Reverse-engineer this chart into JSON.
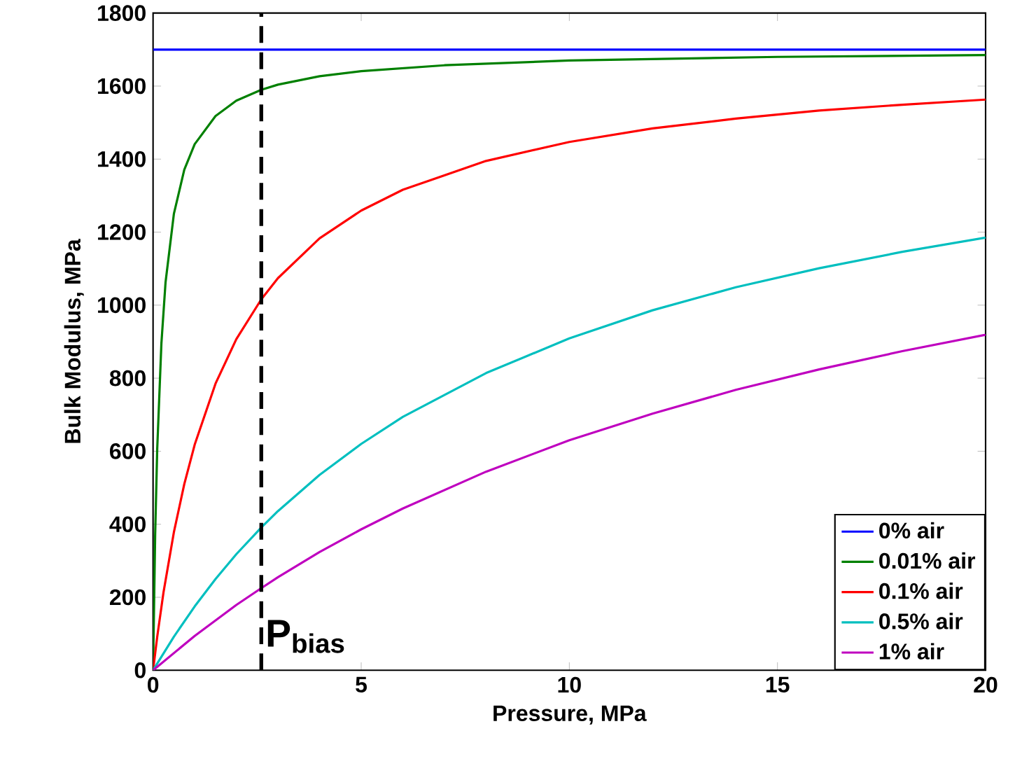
{
  "chart_data": {
    "type": "line",
    "xlabel": "Pressure, MPa",
    "ylabel": "Bulk Modulus, MPa",
    "xlim": [
      0,
      20
    ],
    "ylim": [
      0,
      1800
    ],
    "xticks": [
      0,
      5,
      10,
      15,
      20
    ],
    "yticks": [
      0,
      200,
      400,
      600,
      800,
      1000,
      1200,
      1400,
      1600,
      1800
    ],
    "grid": false,
    "legend": "bottom right",
    "marker": "none",
    "line_style": "solid",
    "series": [
      {
        "name": "0% air",
        "color": "#0000ff",
        "x": [
          0,
          20
        ],
        "values": [
          1700,
          1700
        ]
      },
      {
        "name": "0.01% air",
        "color": "#008000",
        "x": [
          0,
          0.05,
          0.1,
          0.2,
          0.3,
          0.5,
          0.75,
          1,
          1.5,
          2,
          2.6,
          3,
          4,
          5,
          7,
          10,
          15,
          20
        ],
        "values": [
          0,
          370,
          607,
          895,
          1063,
          1250,
          1371,
          1441,
          1518,
          1560,
          1590,
          1604,
          1627,
          1641,
          1657,
          1670,
          1680,
          1685
        ]
      },
      {
        "name": "0.1% air",
        "color": "#ff0000",
        "x": [
          0,
          0.1,
          0.25,
          0.5,
          0.75,
          1,
          1.5,
          2,
          2.6,
          3,
          4,
          5,
          6,
          8,
          10,
          12,
          14,
          16,
          18,
          20
        ],
        "values": [
          0,
          92,
          213,
          378,
          510,
          618,
          785,
          907,
          1016,
          1074,
          1183,
          1259,
          1316,
          1395,
          1447,
          1484,
          1511,
          1533,
          1549,
          1563
        ]
      },
      {
        "name": "0.5% air",
        "color": "#00bfbf",
        "x": [
          0,
          0.5,
          1,
          1.5,
          2,
          2.6,
          3,
          4,
          5,
          6,
          8,
          10,
          12,
          14,
          16,
          18,
          20
        ],
        "values": [
          0,
          92,
          175,
          250,
          318,
          391,
          436,
          535,
          620,
          694,
          814,
          909,
          986,
          1049,
          1101,
          1146,
          1185
        ]
      },
      {
        "name": "1% air",
        "color": "#bf00bf",
        "x": [
          0,
          1,
          2,
          2.6,
          3,
          4,
          5,
          6,
          8,
          10,
          12,
          14,
          16,
          18,
          20
        ],
        "values": [
          0,
          94,
          179,
          225,
          255,
          324,
          386,
          443,
          544,
          630,
          703,
          768,
          824,
          874,
          919
        ]
      }
    ],
    "ref_lines": [
      {
        "axis": "x",
        "value": 2.6,
        "label": "P$_{bias}$",
        "color": "#000000",
        "line_style": "dashed"
      }
    ]
  }
}
